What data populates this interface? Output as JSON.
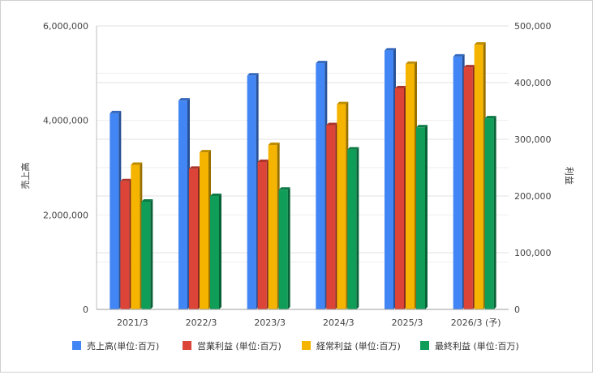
{
  "chart_data": {
    "type": "bar",
    "style": "3d-column",
    "categories": [
      "2021/3",
      "2022/3",
      "2023/3",
      "2024/3",
      "2025/3",
      "2026/3 (予)"
    ],
    "series": [
      {
        "name": "売上高(単位:百万)",
        "axis": "left",
        "color": "#4285f4",
        "values": [
          4150000,
          4420000,
          4950000,
          5210000,
          5480000,
          5350000
        ]
      },
      {
        "name": "営業利益 (単位:百万)",
        "axis": "right",
        "color": "#db4437",
        "values": [
          226000,
          248000,
          260000,
          325000,
          390000,
          427000
        ]
      },
      {
        "name": "経常利益 (単位:百万)",
        "axis": "right",
        "color": "#f4b400",
        "values": [
          255000,
          277000,
          290000,
          362000,
          433000,
          467000
        ]
      },
      {
        "name": "最終利益 (単位:百万)",
        "axis": "right",
        "color": "#0f9d58",
        "values": [
          190000,
          200000,
          211000,
          282000,
          321000,
          337000
        ]
      }
    ],
    "ylabel": "売上高",
    "y2label": "利益",
    "ylim": [
      0,
      6000000
    ],
    "y2lim": [
      0,
      500000
    ],
    "yticks": [
      "0",
      "2,000,000",
      "4,000,000",
      "6,000,000"
    ],
    "y2ticks": [
      "0",
      "100,000",
      "200,000",
      "300,000",
      "400,000",
      "500,000"
    ],
    "grid": true,
    "legend_position": "bottom"
  }
}
